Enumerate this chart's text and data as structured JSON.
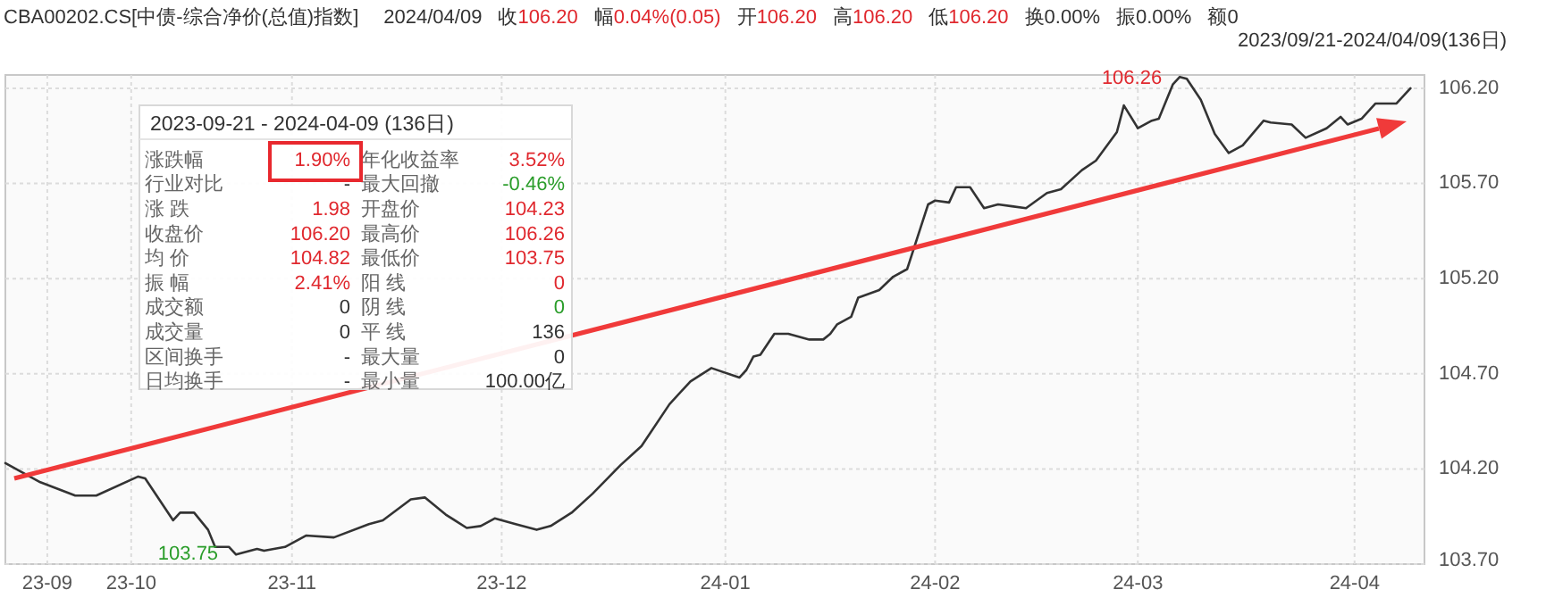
{
  "chart_data": [
    {
      "type": "line",
      "title": "CBA00202.CS[中债-综合净价(总值)指数]",
      "subtitle": "2023/09/21-2024/04/09(136日)",
      "x": [
        "2023-09-21",
        "2023-09-26",
        "2023-10-01",
        "2023-10-04",
        "2023-10-10",
        "2023-10-11",
        "2023-10-13",
        "2023-10-15",
        "2023-10-16",
        "2023-10-18",
        "2023-10-20",
        "2023-10-21",
        "2023-10-23",
        "2023-10-24",
        "2023-10-27",
        "2023-10-28",
        "2023-10-31",
        "2023-11-03",
        "2023-11-07",
        "2023-11-12",
        "2023-11-14",
        "2023-11-18",
        "2023-11-20",
        "2023-11-23",
        "2023-11-26",
        "2023-11-28",
        "2023-11-30",
        "2023-12-03",
        "2023-12-06",
        "2023-12-08",
        "2023-12-11",
        "2023-12-14",
        "2023-12-18",
        "2023-12-21",
        "2023-12-25",
        "2023-12-28",
        "2023-12-31",
        "2024-01-04",
        "2024-01-05",
        "2024-01-06",
        "2024-01-07",
        "2024-01-09",
        "2024-01-11",
        "2024-01-14",
        "2024-01-16",
        "2024-01-17",
        "2024-01-18",
        "2024-01-20",
        "2024-01-21",
        "2024-01-24",
        "2024-01-26",
        "2024-01-28",
        "2024-01-31",
        "2024-02-01",
        "2024-02-03",
        "2024-02-04",
        "2024-02-06",
        "2024-02-08",
        "2024-02-10",
        "2024-02-12",
        "2024-02-14",
        "2024-02-17",
        "2024-02-19",
        "2024-02-22",
        "2024-02-24",
        "2024-02-27",
        "2024-02-28",
        "2024-03-01",
        "2024-03-03",
        "2024-03-04",
        "2024-03-06",
        "2024-03-07",
        "2024-03-08",
        "2024-03-10",
        "2024-03-12",
        "2024-03-14",
        "2024-03-16",
        "2024-03-19",
        "2024-03-20",
        "2024-03-23",
        "2024-03-25",
        "2024-03-28",
        "2024-03-30",
        "2024-03-31",
        "2024-04-02",
        "2024-04-04",
        "2024-04-07",
        "2024-04-09"
      ],
      "series": [
        {
          "color": "#333333",
          "values": [
            104.23,
            104.13,
            104.06,
            104.06,
            104.16,
            104.15,
            104.04,
            103.93,
            103.97,
            103.97,
            103.88,
            103.79,
            103.79,
            103.75,
            103.78,
            103.77,
            103.79,
            103.85,
            103.84,
            103.91,
            103.93,
            104.04,
            104.05,
            103.96,
            103.89,
            103.9,
            103.94,
            103.91,
            103.88,
            103.9,
            103.97,
            104.07,
            104.22,
            104.32,
            104.54,
            104.66,
            104.73,
            104.68,
            104.72,
            104.79,
            104.8,
            104.91,
            104.91,
            104.88,
            104.88,
            104.91,
            104.96,
            105.0,
            105.1,
            105.14,
            105.21,
            105.25,
            105.59,
            105.61,
            105.6,
            105.68,
            105.68,
            105.57,
            105.59,
            105.58,
            105.57,
            105.65,
            105.67,
            105.77,
            105.82,
            105.97,
            106.11,
            105.99,
            106.03,
            106.04,
            106.22,
            106.26,
            106.25,
            106.14,
            105.96,
            105.86,
            105.9,
            106.03,
            106.02,
            106.01,
            105.94,
            105.99,
            106.05,
            106.01,
            106.04,
            106.12,
            106.12,
            106.2
          ]
        }
      ],
      "xlim": [
        "2023-09-21",
        "2024-04-11"
      ],
      "ylim": [
        103.7,
        106.27
      ],
      "xticks": [
        {
          "value": "2023-09-27",
          "label": "23-09"
        },
        {
          "value": "2023-10-09",
          "label": "23-10"
        },
        {
          "value": "2023-11-01",
          "label": "23-11"
        },
        {
          "value": "2023-12-01",
          "label": "23-12"
        },
        {
          "value": "2024-01-02",
          "label": "24-01"
        },
        {
          "value": "2024-02-01",
          "label": "24-02"
        },
        {
          "value": "2024-03-01",
          "label": "24-03"
        },
        {
          "value": "2024-04-01",
          "label": "24-04"
        }
      ],
      "yticks": [
        {
          "value": 103.7,
          "label": "103.70"
        },
        {
          "value": 104.2,
          "label": "104.20"
        },
        {
          "value": 104.7,
          "label": "104.70"
        },
        {
          "value": 105.2,
          "label": "105.20"
        },
        {
          "value": 105.7,
          "label": "105.70"
        },
        {
          "value": 106.2,
          "label": "106.20"
        }
      ],
      "grid": true,
      "annotations": [
        "2024/04/09",
        "收106.20",
        "幅0.04%(0.05)",
        "开106.20",
        "高106.20",
        "低106.20",
        "换0.00%",
        "振0.00%",
        "额0",
        {
          "text": "106.26",
          "x": "2024-03-07",
          "y": 106.26
        },
        {
          "text": "103.75",
          "x": "2023-10-24",
          "y": 103.75
        }
      ]
    },
    {
      "type": "other",
      "title": "2023-09-21 - 2024-04-09 (136日)",
      "categories": [
        "涨跌幅",
        "年化收益率",
        "行业对比",
        "最大回撤",
        "涨 跌",
        "开盘价",
        "收盘价",
        "最高价",
        "均 价",
        "最低价",
        "振 幅",
        "阳 线",
        "成交额",
        "阴 线",
        "成交量",
        "平 线",
        "区间换手",
        "最大量",
        "日均换手",
        "最小量"
      ],
      "value_labels": [
        "1.90%",
        "3.52%",
        "-",
        "-0.46%",
        "1.98",
        "104.23",
        "106.20",
        "106.26",
        "104.82",
        "103.75",
        "2.41%",
        "0",
        "0",
        "0",
        "0",
        "136",
        "-",
        "0",
        "-",
        "100.00亿"
      ],
      "colors": [
        "#e0282e",
        "#e0282e",
        "#333333",
        "#2a9d2a",
        "#e0282e",
        "#e0282e",
        "#e0282e",
        "#e0282e",
        "#e0282e",
        "#e0282e",
        "#e0282e",
        "#e0282e",
        "#333333",
        "#2a9d2a",
        "#333333",
        "#333333",
        "#333333",
        "#333333",
        "#333333",
        "#333333"
      ]
    }
  ]
}
